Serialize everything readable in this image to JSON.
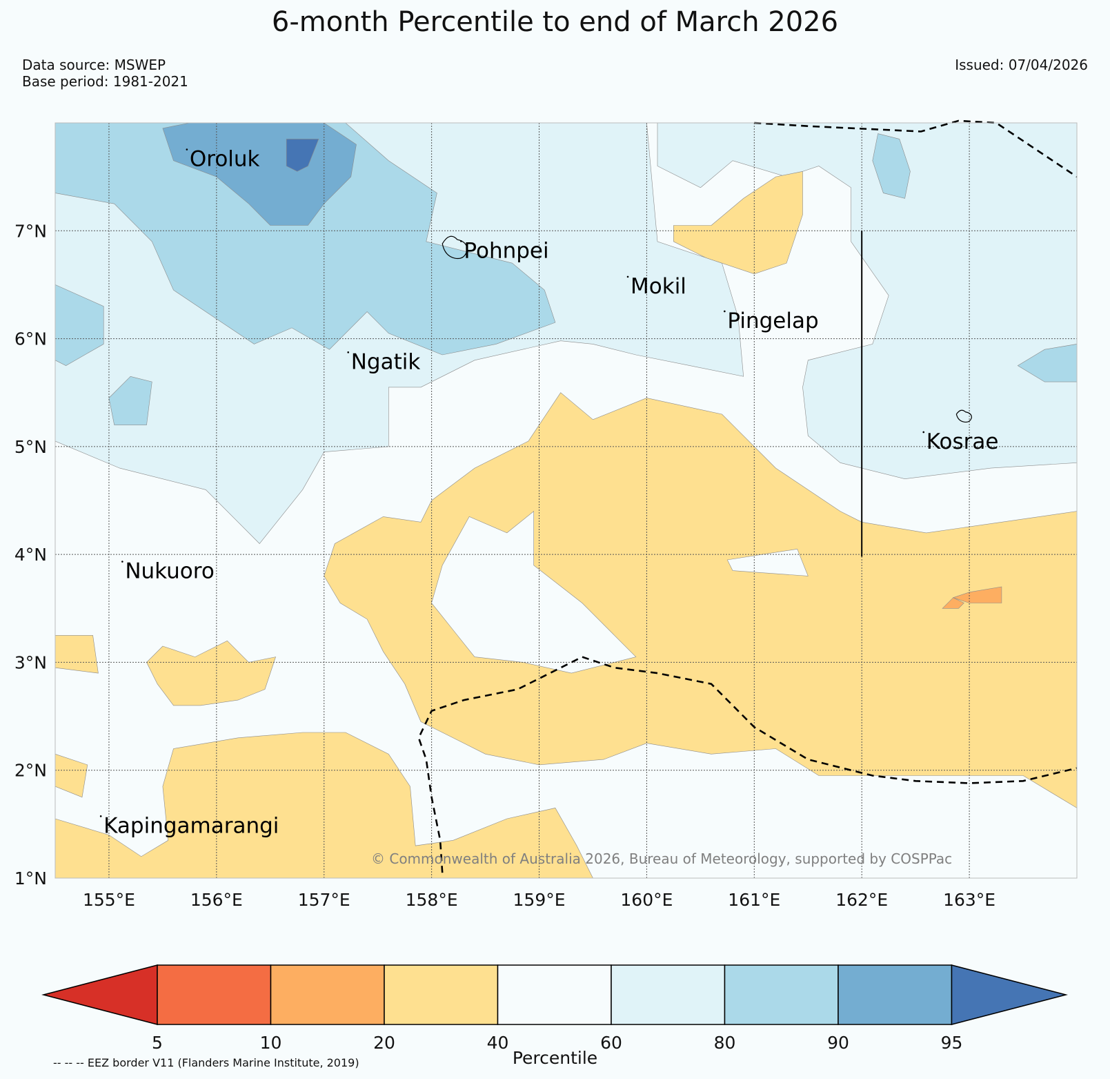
{
  "title": "6-month Percentile to end of March 2026",
  "data_source": "Data source: MSWEP",
  "base_period": "Base period: 1981-2021",
  "issued": "Issued: 07/04/2026",
  "copyright": "© Commonwealth of Australia 2026, Bureau of Meteorology, supported by COSPPac",
  "eez_note": "-- -- -- EEZ border V11 (Flanders Marine Institute, 2019)",
  "map": {
    "lon_range": [
      154.5,
      164.0
    ],
    "lat_range": [
      1.0,
      8.0
    ],
    "lon_ticks": [
      {
        "value": 155,
        "label": "155°E"
      },
      {
        "value": 156,
        "label": "156°E"
      },
      {
        "value": 157,
        "label": "157°E"
      },
      {
        "value": 158,
        "label": "158°E"
      },
      {
        "value": 159,
        "label": "159°E"
      },
      {
        "value": 160,
        "label": "160°E"
      },
      {
        "value": 161,
        "label": "161°E"
      },
      {
        "value": 162,
        "label": "162°E"
      },
      {
        "value": 163,
        "label": "163°E"
      }
    ],
    "lat_ticks": [
      {
        "value": 7,
        "label": "7°N"
      },
      {
        "value": 6,
        "label": "6°N"
      },
      {
        "value": 5,
        "label": "5°N"
      },
      {
        "value": 4,
        "label": "4°N"
      },
      {
        "value": 3,
        "label": "3°N"
      },
      {
        "value": 2,
        "label": "2°N"
      },
      {
        "value": 1,
        "label": "1°N"
      }
    ],
    "places": [
      {
        "name": "Oroluk",
        "lon": 155.75,
        "lat": 7.6
      },
      {
        "name": "Pohnpei",
        "lon": 158.3,
        "lat": 6.75
      },
      {
        "name": "Mokil",
        "lon": 159.85,
        "lat": 6.42
      },
      {
        "name": "Pingelap",
        "lon": 160.75,
        "lat": 6.1
      },
      {
        "name": "Ngatik",
        "lon": 157.25,
        "lat": 5.72
      },
      {
        "name": "Kosrae",
        "lon": 162.6,
        "lat": 4.98
      },
      {
        "name": "Nukuoro",
        "lon": 155.15,
        "lat": 3.78
      },
      {
        "name": "Kapingamarangi",
        "lon": 154.95,
        "lat": 1.42
      }
    ],
    "regions": [
      {
        "category": "60-80",
        "color": "#e0f3f8",
        "points": [
          [
            154.5,
            8.0
          ],
          [
            160.0,
            8.0
          ],
          [
            160.1,
            6.9
          ],
          [
            160.7,
            6.7
          ],
          [
            160.85,
            6.2
          ],
          [
            160.9,
            5.65
          ],
          [
            160.4,
            5.75
          ],
          [
            159.9,
            5.85
          ],
          [
            159.5,
            5.95
          ],
          [
            159.2,
            5.98
          ],
          [
            158.4,
            5.8
          ],
          [
            157.9,
            5.55
          ],
          [
            157.6,
            5.55
          ],
          [
            157.6,
            5.0
          ],
          [
            157.0,
            4.95
          ],
          [
            156.8,
            4.6
          ],
          [
            156.4,
            4.1
          ],
          [
            155.9,
            4.6
          ],
          [
            155.1,
            4.8
          ],
          [
            154.5,
            5.05
          ]
        ]
      },
      {
        "category": "60-80",
        "color": "#e0f3f8",
        "points": [
          [
            160.1,
            8.0
          ],
          [
            164.0,
            8.0
          ],
          [
            164.0,
            4.85
          ],
          [
            163.2,
            4.8
          ],
          [
            162.4,
            4.7
          ],
          [
            161.8,
            4.85
          ],
          [
            161.5,
            5.1
          ],
          [
            161.45,
            5.55
          ],
          [
            161.5,
            5.8
          ],
          [
            162.1,
            5.95
          ],
          [
            162.25,
            6.4
          ],
          [
            161.9,
            6.9
          ],
          [
            161.9,
            7.4
          ],
          [
            161.6,
            7.6
          ],
          [
            161.3,
            7.5
          ],
          [
            160.8,
            7.65
          ],
          [
            160.5,
            7.4
          ],
          [
            160.1,
            7.6
          ]
        ]
      },
      {
        "category": "80-90",
        "color": "#abd9e9",
        "points": [
          [
            154.5,
            8.0
          ],
          [
            157.2,
            8.0
          ],
          [
            157.6,
            7.65
          ],
          [
            158.05,
            7.35
          ],
          [
            157.95,
            6.9
          ],
          [
            158.75,
            6.7
          ],
          [
            159.05,
            6.45
          ],
          [
            159.15,
            6.15
          ],
          [
            158.6,
            5.95
          ],
          [
            158.1,
            5.85
          ],
          [
            157.6,
            6.05
          ],
          [
            157.4,
            6.25
          ],
          [
            157.05,
            5.9
          ],
          [
            156.7,
            6.1
          ],
          [
            156.35,
            5.95
          ],
          [
            156.05,
            6.15
          ],
          [
            155.6,
            6.45
          ],
          [
            155.4,
            6.9
          ],
          [
            155.05,
            7.25
          ],
          [
            154.5,
            7.35
          ]
        ]
      },
      {
        "category": "80-90",
        "color": "#abd9e9",
        "points": [
          [
            154.5,
            6.5
          ],
          [
            154.95,
            6.3
          ],
          [
            154.95,
            5.95
          ],
          [
            154.6,
            5.75
          ],
          [
            154.5,
            5.8
          ]
        ]
      },
      {
        "category": "80-90",
        "color": "#abd9e9",
        "points": [
          [
            162.15,
            7.9
          ],
          [
            162.35,
            7.85
          ],
          [
            162.45,
            7.55
          ],
          [
            162.4,
            7.3
          ],
          [
            162.2,
            7.35
          ],
          [
            162.1,
            7.65
          ]
        ]
      },
      {
        "category": "80-90",
        "color": "#abd9e9",
        "points": [
          [
            163.45,
            5.75
          ],
          [
            163.7,
            5.9
          ],
          [
            164.0,
            5.95
          ],
          [
            164.0,
            5.6
          ],
          [
            163.7,
            5.6
          ]
        ]
      },
      {
        "category": "80-90",
        "color": "#abd9e9",
        "points": [
          [
            155.2,
            5.65
          ],
          [
            155.4,
            5.6
          ],
          [
            155.35,
            5.2
          ],
          [
            155.05,
            5.2
          ],
          [
            155.0,
            5.45
          ]
        ]
      },
      {
        "category": "90-95",
        "color": "#74add1",
        "points": [
          [
            155.75,
            8.0
          ],
          [
            157.0,
            8.0
          ],
          [
            157.3,
            7.8
          ],
          [
            157.25,
            7.5
          ],
          [
            157.0,
            7.25
          ],
          [
            156.85,
            7.05
          ],
          [
            156.5,
            7.05
          ],
          [
            156.3,
            7.25
          ],
          [
            156.0,
            7.5
          ],
          [
            155.6,
            7.65
          ],
          [
            155.5,
            7.95
          ]
        ]
      },
      {
        "category": ">95",
        "color": "#4575b4",
        "points": [
          [
            156.65,
            7.85
          ],
          [
            156.95,
            7.85
          ],
          [
            156.85,
            7.6
          ],
          [
            156.75,
            7.55
          ],
          [
            156.65,
            7.6
          ]
        ]
      },
      {
        "category": "20-40",
        "color": "#fee090",
        "points": [
          [
            158.0,
            4.5
          ],
          [
            158.4,
            4.8
          ],
          [
            158.9,
            5.05
          ],
          [
            159.2,
            5.5
          ],
          [
            159.5,
            5.25
          ],
          [
            160.0,
            5.45
          ],
          [
            160.7,
            5.3
          ],
          [
            160.85,
            5.15
          ],
          [
            161.2,
            4.8
          ],
          [
            161.5,
            4.6
          ],
          [
            161.8,
            4.4
          ],
          [
            162.0,
            4.3
          ],
          [
            162.6,
            4.2
          ],
          [
            163.3,
            4.3
          ],
          [
            164.0,
            4.4
          ],
          [
            164.0,
            1.65
          ],
          [
            163.5,
            1.95
          ],
          [
            162.8,
            1.95
          ],
          [
            162.2,
            1.95
          ],
          [
            161.6,
            1.95
          ],
          [
            161.2,
            2.2
          ],
          [
            160.6,
            2.15
          ],
          [
            160.0,
            2.25
          ],
          [
            159.6,
            2.1
          ],
          [
            159.0,
            2.05
          ],
          [
            158.5,
            2.15
          ],
          [
            158.3,
            2.25
          ],
          [
            158.1,
            2.35
          ],
          [
            157.9,
            2.45
          ],
          [
            157.75,
            2.8
          ],
          [
            157.55,
            3.1
          ],
          [
            157.4,
            3.4
          ],
          [
            157.15,
            3.55
          ],
          [
            157.0,
            3.8
          ],
          [
            157.1,
            4.1
          ],
          [
            157.55,
            4.35
          ],
          [
            157.9,
            4.3
          ]
        ]
      },
      {
        "category": "40-60",
        "color": "#f7fcfd",
        "points": [
          [
            158.1,
            3.9
          ],
          [
            158.35,
            4.35
          ],
          [
            158.7,
            4.2
          ],
          [
            158.95,
            4.4
          ],
          [
            158.95,
            3.9
          ],
          [
            159.4,
            3.55
          ],
          [
            159.7,
            3.25
          ],
          [
            159.9,
            3.05
          ],
          [
            159.3,
            2.9
          ],
          [
            158.85,
            3.0
          ],
          [
            158.4,
            3.05
          ],
          [
            158.2,
            3.3
          ],
          [
            158.0,
            3.55
          ]
        ]
      },
      {
        "category": "40-60",
        "color": "#f7fcfd",
        "points": [
          [
            160.75,
            3.95
          ],
          [
            161.4,
            4.05
          ],
          [
            161.5,
            3.8
          ],
          [
            160.8,
            3.85
          ]
        ]
      },
      {
        "category": "20-40",
        "color": "#fee090",
        "points": [
          [
            160.6,
            7.05
          ],
          [
            160.9,
            7.3
          ],
          [
            161.2,
            7.5
          ],
          [
            161.45,
            7.55
          ],
          [
            161.45,
            7.15
          ],
          [
            161.3,
            6.7
          ],
          [
            161.0,
            6.6
          ],
          [
            160.55,
            6.75
          ],
          [
            160.25,
            6.9
          ],
          [
            160.25,
            7.05
          ]
        ]
      },
      {
        "category": "20-40",
        "color": "#fee090",
        "points": [
          [
            155.5,
            3.15
          ],
          [
            155.8,
            3.05
          ],
          [
            156.1,
            3.2
          ],
          [
            156.3,
            3.0
          ],
          [
            156.55,
            3.05
          ],
          [
            156.45,
            2.75
          ],
          [
            156.2,
            2.65
          ],
          [
            155.85,
            2.6
          ],
          [
            155.6,
            2.6
          ],
          [
            155.45,
            2.8
          ],
          [
            155.35,
            3.0
          ]
        ]
      },
      {
        "category": "20-40",
        "color": "#fee090",
        "points": [
          [
            154.5,
            1.55
          ],
          [
            155.0,
            1.4
          ],
          [
            155.3,
            1.2
          ],
          [
            155.55,
            1.35
          ],
          [
            155.5,
            1.85
          ],
          [
            155.6,
            2.2
          ],
          [
            156.2,
            2.3
          ],
          [
            156.8,
            2.35
          ],
          [
            157.2,
            2.35
          ],
          [
            157.6,
            2.15
          ],
          [
            157.8,
            1.85
          ],
          [
            157.85,
            1.3
          ],
          [
            158.2,
            1.35
          ],
          [
            158.7,
            1.55
          ],
          [
            159.15,
            1.65
          ],
          [
            159.35,
            1.3
          ],
          [
            159.5,
            1.0
          ],
          [
            154.5,
            1.0
          ]
        ]
      },
      {
        "category": "20-40",
        "color": "#fee090",
        "points": [
          [
            154.5,
            3.25
          ],
          [
            154.85,
            3.25
          ],
          [
            154.9,
            2.9
          ],
          [
            154.5,
            2.95
          ]
        ]
      },
      {
        "category": "20-40",
        "color": "#fee090",
        "points": [
          [
            154.5,
            2.15
          ],
          [
            154.8,
            2.05
          ],
          [
            154.75,
            1.75
          ],
          [
            154.5,
            1.85
          ]
        ]
      },
      {
        "category": "10-20",
        "color": "#fdae61",
        "points": [
          [
            162.85,
            3.6
          ],
          [
            163.0,
            3.65
          ],
          [
            163.3,
            3.7
          ],
          [
            163.3,
            3.55
          ],
          [
            163.0,
            3.55
          ]
        ]
      },
      {
        "category": "10-20",
        "color": "#fdae61",
        "points": [
          [
            162.75,
            3.5
          ],
          [
            162.85,
            3.6
          ],
          [
            162.95,
            3.55
          ],
          [
            162.9,
            3.5
          ]
        ]
      }
    ],
    "eez_lines": [
      [
        [
          161.0,
          8.0
        ],
        [
          161.5,
          7.97
        ],
        [
          162.55,
          7.92
        ],
        [
          162.9,
          8.02
        ],
        [
          163.25,
          8.0
        ],
        [
          163.7,
          7.7
        ],
        [
          164.0,
          7.5
        ]
      ],
      [
        [
          162.0,
          7.0
        ],
        [
          162.0,
          3.98
        ]
      ],
      [
        [
          158.1,
          1.05
        ],
        [
          158.08,
          1.35
        ],
        [
          158.0,
          1.75
        ],
        [
          157.95,
          2.1
        ],
        [
          157.88,
          2.3
        ],
        [
          158.0,
          2.55
        ],
        [
          158.3,
          2.65
        ],
        [
          158.8,
          2.75
        ],
        [
          159.1,
          2.9
        ],
        [
          159.4,
          3.05
        ],
        [
          159.7,
          2.95
        ],
        [
          160.1,
          2.9
        ],
        [
          160.6,
          2.8
        ],
        [
          161.0,
          2.4
        ],
        [
          161.5,
          2.1
        ],
        [
          162.1,
          1.95
        ],
        [
          162.5,
          1.9
        ],
        [
          163.0,
          1.88
        ],
        [
          163.5,
          1.9
        ],
        [
          164.0,
          2.02
        ]
      ]
    ]
  },
  "colorbar": {
    "label": "Percentile",
    "ticks": [
      "5",
      "10",
      "20",
      "40",
      "60",
      "80",
      "90",
      "95"
    ],
    "colors": [
      "#d73027",
      "#f46d43",
      "#fdae61",
      "#fee090",
      "#f7fcfd",
      "#e0f3f8",
      "#abd9e9",
      "#74add1",
      "#4575b4"
    ]
  }
}
